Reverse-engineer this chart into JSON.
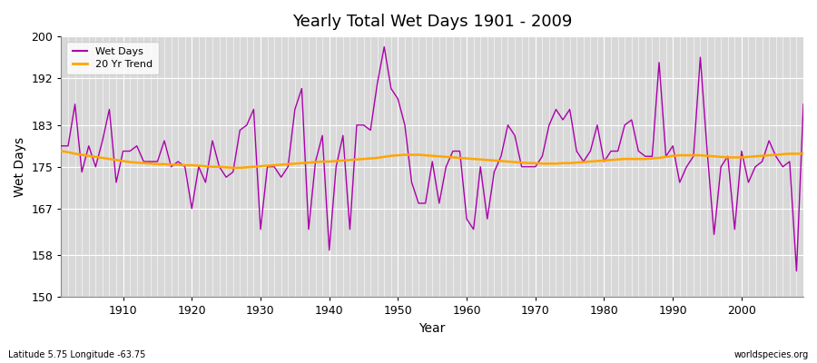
{
  "title": "Yearly Total Wet Days 1901 - 2009",
  "xlabel": "Year",
  "ylabel": "Wet Days",
  "xlim": [
    1901,
    2009
  ],
  "ylim": [
    150,
    200
  ],
  "yticks": [
    150,
    158,
    167,
    175,
    183,
    192,
    200
  ],
  "xticks": [
    1910,
    1920,
    1930,
    1940,
    1950,
    1960,
    1970,
    1980,
    1990,
    2000
  ],
  "bg_color": "#ffffff",
  "plot_bg_color": "#d8d8d8",
  "line_color": "#aa00aa",
  "trend_color": "#ffa500",
  "grid_color": "#ffffff",
  "footer_left": "Latitude 5.75 Longitude -63.75",
  "footer_right": "worldspecies.org",
  "legend_entries": [
    "Wet Days",
    "20 Yr Trend"
  ],
  "wet_days": [
    179,
    179,
    187,
    174,
    179,
    175,
    180,
    186,
    172,
    178,
    178,
    179,
    176,
    176,
    176,
    180,
    175,
    176,
    175,
    167,
    175,
    172,
    180,
    175,
    173,
    174,
    182,
    183,
    186,
    163,
    175,
    175,
    173,
    175,
    186,
    190,
    163,
    176,
    181,
    159,
    175,
    181,
    163,
    183,
    183,
    182,
    191,
    198,
    190,
    188,
    183,
    172,
    168,
    168,
    176,
    168,
    175,
    178,
    178,
    165,
    163,
    175,
    165,
    174,
    177,
    183,
    181,
    175,
    175,
    175,
    177,
    183,
    186,
    184,
    186,
    178,
    176,
    178,
    183,
    176,
    178,
    178,
    183,
    184,
    178,
    177,
    177,
    195,
    177,
    179,
    172,
    175,
    177,
    196,
    178,
    162,
    175,
    177,
    163,
    178,
    172,
    175,
    176,
    180,
    177,
    175,
    176,
    155,
    187
  ],
  "trend": [
    178.0,
    177.8,
    177.5,
    177.3,
    177.1,
    176.9,
    176.7,
    176.5,
    176.3,
    176.1,
    175.9,
    175.8,
    175.7,
    175.6,
    175.5,
    175.5,
    175.4,
    175.4,
    175.3,
    175.3,
    175.2,
    175.1,
    175.0,
    175.0,
    174.9,
    174.8,
    174.8,
    174.9,
    175.0,
    175.1,
    175.2,
    175.3,
    175.4,
    175.5,
    175.6,
    175.7,
    175.8,
    175.9,
    176.0,
    176.0,
    176.1,
    176.2,
    176.3,
    176.4,
    176.5,
    176.6,
    176.7,
    176.9,
    177.1,
    177.2,
    177.3,
    177.3,
    177.3,
    177.2,
    177.1,
    177.0,
    176.9,
    176.8,
    176.7,
    176.6,
    176.5,
    176.4,
    176.3,
    176.2,
    176.1,
    176.0,
    175.9,
    175.8,
    175.7,
    175.7,
    175.6,
    175.6,
    175.6,
    175.7,
    175.7,
    175.8,
    175.9,
    176.0,
    176.1,
    176.2,
    176.3,
    176.4,
    176.5,
    176.5,
    176.5,
    176.5,
    176.6,
    176.7,
    176.9,
    177.1,
    177.2,
    177.2,
    177.2,
    177.2,
    177.1,
    177.0,
    176.9,
    176.8,
    176.8,
    176.8,
    176.9,
    177.0,
    177.1,
    177.2,
    177.3,
    177.4,
    177.5,
    177.5,
    177.5
  ]
}
